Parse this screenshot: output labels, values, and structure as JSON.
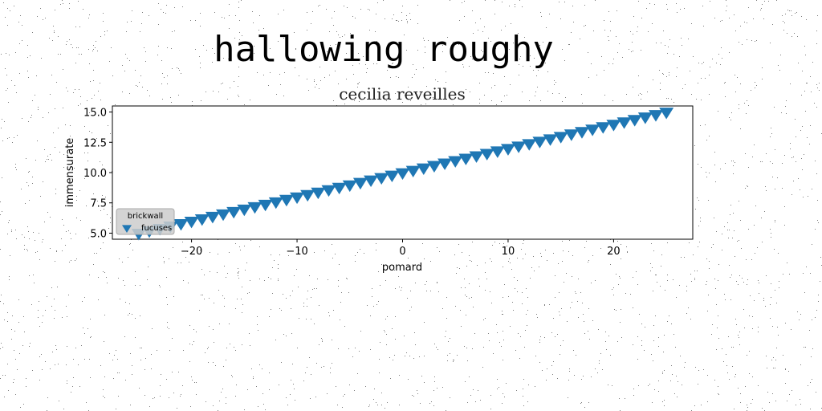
{
  "suptitle": "hallowing roughy",
  "chart_data": {
    "type": "scatter",
    "title": "cecilia reveilles",
    "xlabel": "pomard",
    "ylabel": "immensurate",
    "xlim": [
      -27.5,
      27.5
    ],
    "ylim": [
      4.5,
      15.5
    ],
    "xticks": [
      -20,
      -10,
      0,
      10,
      20
    ],
    "xtick_labels": [
      "−20",
      "−10",
      "0",
      "10",
      "20"
    ],
    "yticks": [
      5.0,
      7.5,
      10.0,
      12.5,
      15.0
    ],
    "ytick_labels": [
      "5.0",
      "7.5",
      "10.0",
      "12.5",
      "15.0"
    ],
    "grid": false,
    "legend": {
      "title": "brickwall",
      "placement": "lower-left"
    },
    "series": [
      {
        "name": "fucuses",
        "marker": "triangle-down",
        "color": "#1f77b4",
        "x": [
          -25.0,
          -24.0,
          -23.0,
          -22.0,
          -21.0,
          -20.0,
          -19.0,
          -18.0,
          -17.0,
          -16.0,
          -15.0,
          -14.0,
          -13.0,
          -12.0,
          -11.0,
          -10.0,
          -9.0,
          -8.0,
          -7.0,
          -6.0,
          -5.0,
          -4.0,
          -3.0,
          -2.0,
          -1.0,
          0.0,
          1.0,
          2.0,
          3.0,
          4.0,
          5.0,
          6.0,
          7.0,
          8.0,
          9.0,
          10.0,
          11.0,
          12.0,
          13.0,
          14.0,
          15.0,
          16.0,
          17.0,
          18.0,
          19.0,
          20.0,
          21.0,
          22.0,
          23.0,
          24.0,
          25.0
        ],
        "y": [
          5.0,
          5.2,
          5.4,
          5.6,
          5.8,
          6.0,
          6.2,
          6.4,
          6.6,
          6.8,
          7.0,
          7.2,
          7.4,
          7.6,
          7.8,
          8.0,
          8.2,
          8.4,
          8.6,
          8.8,
          9.0,
          9.2,
          9.4,
          9.6,
          9.8,
          10.0,
          10.2,
          10.4,
          10.6,
          10.8,
          11.0,
          11.2,
          11.4,
          11.6,
          11.8,
          12.0,
          12.2,
          12.4,
          12.6,
          12.8,
          13.0,
          13.2,
          13.4,
          13.6,
          13.8,
          14.0,
          14.2,
          14.4,
          14.6,
          14.8,
          15.0
        ]
      }
    ]
  }
}
